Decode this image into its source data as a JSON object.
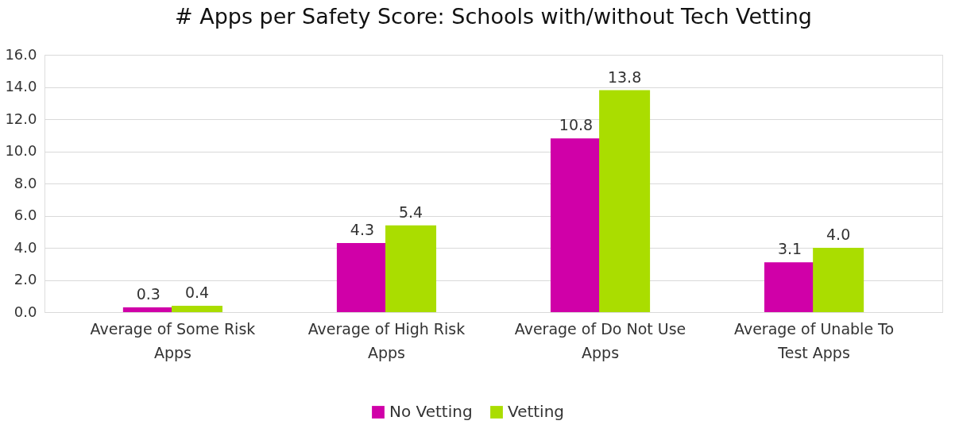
{
  "chart_data": {
    "type": "bar",
    "title": "# Apps per Safety Score: Schools with/without Tech Vetting",
    "categories": [
      "Average of Some Risk Apps",
      "Average of High Risk Apps",
      "Average of Do Not Use Apps",
      "Average of Unable To Test Apps"
    ],
    "series": [
      {
        "name": "No Vetting",
        "color": "#d000a8",
        "values": [
          0.3,
          4.3,
          10.8,
          3.1
        ],
        "value_labels": [
          "0.3",
          "4.3",
          "10.8",
          "3.1"
        ]
      },
      {
        "name": "Vetting",
        "color": "#aadd00",
        "values": [
          0.4,
          5.4,
          13.8,
          4.0
        ],
        "value_labels": [
          "0.4",
          "5.4",
          "13.8",
          "4.0"
        ]
      }
    ],
    "ylim": [
      0,
      16
    ],
    "yticks": [
      {
        "value": 0,
        "label": "0.0"
      },
      {
        "value": 2,
        "label": "2.0"
      },
      {
        "value": 4,
        "label": "4.0"
      },
      {
        "value": 6,
        "label": "6.0"
      },
      {
        "value": 8,
        "label": "8.0"
      },
      {
        "value": 10,
        "label": "10.0"
      },
      {
        "value": 12,
        "label": "12.0"
      },
      {
        "value": 14,
        "label": "14.0"
      },
      {
        "value": 16,
        "label": "16.0"
      }
    ],
    "grid": "y",
    "legend": "bottom"
  }
}
